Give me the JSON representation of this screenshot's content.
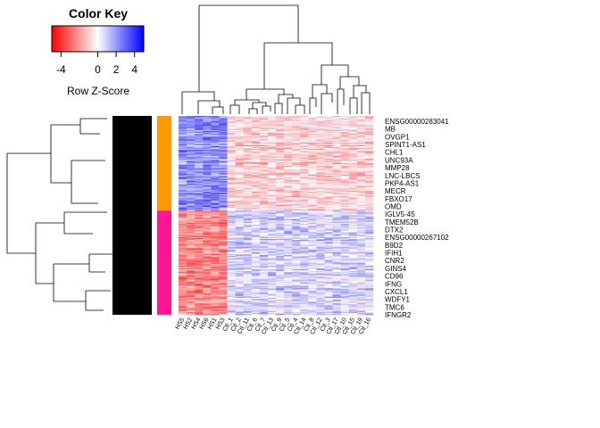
{
  "chart_data": {
    "type": "heatmap",
    "color_key": {
      "title": "Color Key",
      "axis_label": "Row Z-Score",
      "ticks": [
        "-4",
        "0",
        "2",
        "4"
      ],
      "tick_values": [
        -4,
        0,
        2,
        4
      ],
      "range": [
        -5,
        5
      ],
      "colors": {
        "low": "#ff0000",
        "mid": "#ffffff",
        "high": "#0000ff"
      }
    },
    "row_groups": [
      {
        "color": "#ff9900",
        "rows": 100
      },
      {
        "color": "#ff1493",
        "rows": 110
      }
    ],
    "columns": [
      "HS5",
      "HS2",
      "HS4",
      "HS6",
      "HS1",
      "HS3",
      "Ctl_1",
      "Ctl_2",
      "Ctl_11",
      "Ctl_6",
      "Ctl_7",
      "Ctl_13",
      "Ctl_9",
      "Ctl_5",
      "Ctl_4",
      "Ctl_14",
      "Ctl_8",
      "Ctl_12",
      "Ctl_3",
      "Ctl_17",
      "Ctl_10",
      "Ctl_15",
      "Ctl_19",
      "Ctl_16"
    ],
    "column_group_split": 6,
    "gene_labels": [
      "ENSG00000283041",
      "MB",
      "OVGP1",
      "SPINT1-AS1",
      "CHL1",
      "UNC93A",
      "MMP28",
      "LNC-LBCS",
      "PKP4-AS1",
      "MECR",
      "FBXO17",
      "OMD",
      "IGLV5-45",
      "TMEM52B",
      "DTX2",
      "ENSG00000267102",
      "B9D2",
      "IFIH1",
      "CNR2",
      "GINS4",
      "CD96",
      "IFNG",
      "CXCL1",
      "WDFY1",
      "TMC6",
      "IFNGR2"
    ]
  }
}
